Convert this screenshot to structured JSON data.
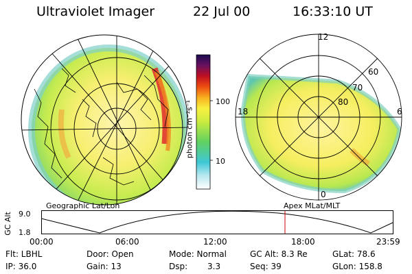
{
  "header": {
    "title": "Ultraviolet Imager",
    "date": "22 Jul 00",
    "time": "16:33:10 UT"
  },
  "colorbar": {
    "unit_label": "photon cm⁻²s⁻¹",
    "tick_100": "100",
    "tick_10": "10"
  },
  "left_map": {
    "caption": "Geographic Lat/Lon"
  },
  "right_map": {
    "caption": "Apex MLat/MLT",
    "mlt_12": "12",
    "mlt_18": "18",
    "mlt_6": "6",
    "mlt_0": "0",
    "lat_60": "60",
    "lat_70": "70",
    "lat_80": "80"
  },
  "altitude_plot": {
    "ylabel": "GC Alt",
    "y_top": "9.0",
    "y_bottom": "1.8",
    "x_ticks": [
      "00:00",
      "06:00",
      "12:00",
      "18:00",
      "23:59"
    ],
    "current_time_fraction": 0.692
  },
  "info": {
    "flt": "Flt: LBHL",
    "door": "Door: Open",
    "mode": "Mode: Normal",
    "gc_alt": "GC Alt: 8.3 Re",
    "glat": "GLat: 78.6",
    "ip": "IP: 36.0",
    "gain": "Gain: 13",
    "dsp_label": "Dsp:",
    "dsp_value": "3.3",
    "seq": "Seq: 39",
    "glon": "GLon: 158.8"
  },
  "colors": {
    "background": "#ffffff",
    "time_marker": "#cc0000"
  }
}
